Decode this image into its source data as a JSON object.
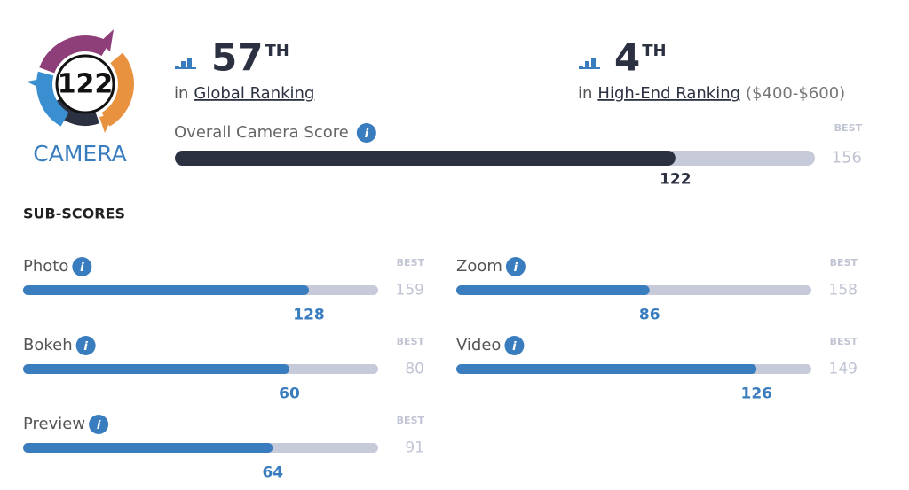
{
  "badge": {
    "score": 122,
    "label": "CAMERA"
  },
  "info_icon": "i",
  "best_label": "BEST",
  "rankings": [
    {
      "rank": 57,
      "suffix": "TH",
      "prefix": "in",
      "name": "Global Ranking"
    },
    {
      "rank": 4,
      "suffix": "TH",
      "prefix": "in",
      "name": "High-End Ranking",
      "note": "($400-$600)"
    }
  ],
  "overall": {
    "label": "Overall Camera Score",
    "score": 122,
    "best": 156
  },
  "subscores": {
    "title": "SUB-SCORES",
    "items": [
      {
        "name": "Photo",
        "score": 128,
        "best": 159
      },
      {
        "name": "Zoom",
        "score": 86,
        "best": 158
      },
      {
        "name": "Bokeh",
        "score": 60,
        "best": 80
      },
      {
        "name": "Video",
        "score": 126,
        "best": 149
      },
      {
        "name": "Preview",
        "score": 64,
        "best": 91
      }
    ]
  }
}
